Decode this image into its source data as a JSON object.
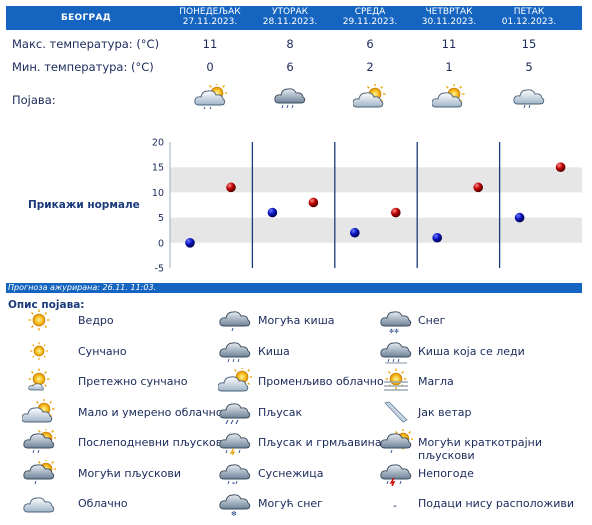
{
  "header": {
    "city": "БЕОГРАД",
    "days": [
      {
        "name": "ПОНЕДЕЉАК",
        "date": "27.11.2023."
      },
      {
        "name": "УТОРАК",
        "date": "28.11.2023."
      },
      {
        "name": "СРЕДА",
        "date": "29.11.2023."
      },
      {
        "name": "ЧЕТВРТАК",
        "date": "30.11.2023."
      },
      {
        "name": "ПЕТАК",
        "date": "01.12.2023."
      }
    ]
  },
  "rows": {
    "max_label": "Макс. температура: (°C)",
    "max_values": [
      "11",
      "8",
      "6",
      "11",
      "15"
    ],
    "min_label": "Мин. температура: (°C)",
    "min_values": [
      "0",
      "6",
      "2",
      "1",
      "5"
    ],
    "phenomenon_label": "Појава:",
    "phenomenon_icons": [
      "partly-cloudy-rain-icon",
      "cloud-rain-icon",
      "partly-cloudy-icon",
      "partly-cloudy-icon",
      "cloud-showers-icon"
    ]
  },
  "normals_link": "Прикажи нормале",
  "chart_data": {
    "type": "scatter",
    "categories": [
      "27.11.2023.",
      "28.11.2023.",
      "29.11.2023.",
      "30.11.2023.",
      "01.12.2023."
    ],
    "series": [
      {
        "name": "Макс. температура",
        "values": [
          11,
          8,
          6,
          11,
          15
        ],
        "color": "#b00000"
      },
      {
        "name": "Мин. температура",
        "values": [
          0,
          6,
          2,
          1,
          5
        ],
        "color": "#0a1aa0"
      }
    ],
    "ylim": [
      -5,
      20
    ],
    "yticks": [
      "-5",
      "0",
      "5",
      "10",
      "15",
      "20"
    ],
    "bands": "alternating-gray"
  },
  "updated": "Прогноза ажурирана:  26.11.  11:03.",
  "legend": {
    "title": "Опис појава:",
    "items": [
      {
        "label": "Ведро",
        "icon": "sun-icon"
      },
      {
        "label": "Сунчано",
        "icon": "sun-small-icon"
      },
      {
        "label": "Претежно сунчано",
        "icon": "mostly-sunny-icon"
      },
      {
        "label": "Мало и умерено облачно",
        "icon": "partly-cloudy-icon"
      },
      {
        "label": "Послеподневни пљускови",
        "icon": "afternoon-showers-icon"
      },
      {
        "label": "Могући пљускови",
        "icon": "possible-showers-icon"
      },
      {
        "label": "Облачно",
        "icon": "cloud-icon"
      },
      {
        "label": "Могућа киша",
        "icon": "possible-rain-icon"
      },
      {
        "label": "Киша",
        "icon": "rain-icon"
      },
      {
        "label": "Променљиво облачно",
        "icon": "variable-cloudy-icon"
      },
      {
        "label": "Пљусак",
        "icon": "shower-icon"
      },
      {
        "label": "Пљусак и грмљавина",
        "icon": "thunderstorm-icon"
      },
      {
        "label": "Суснежица",
        "icon": "sleet-icon"
      },
      {
        "label": "Могућ снег",
        "icon": "possible-snow-icon"
      },
      {
        "label": "Снег",
        "icon": "snow-icon"
      },
      {
        "label": "Киша која се леди",
        "icon": "freezing-rain-icon"
      },
      {
        "label": "Магла",
        "icon": "fog-icon"
      },
      {
        "label": "Јак ветар",
        "icon": "wind-icon"
      },
      {
        "label": "Могући краткотрајни пљускови",
        "icon": "brief-showers-icon"
      },
      {
        "label": "Непогоде",
        "icon": "storm-warning-icon"
      },
      {
        "label": "Подаци нису расположиви",
        "icon": "dash-icon",
        "dash": "-"
      }
    ]
  }
}
